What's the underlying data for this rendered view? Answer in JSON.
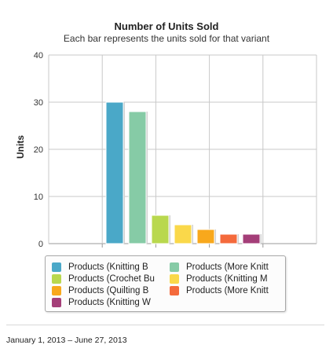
{
  "chart_data": {
    "type": "bar",
    "title": "Number of Units Sold",
    "subtitle": "Each bar represents the units sold for that variant",
    "ylabel": "Units",
    "xlabel": "",
    "ylim": [
      0,
      40
    ],
    "yticks": [
      "0",
      "10",
      "20",
      "30",
      "40"
    ],
    "grid": true,
    "legend_position": "bottom",
    "series": [
      {
        "name": "Products (Knitting B",
        "value": 30,
        "color": "#4aa8c8"
      },
      {
        "name": "Products (More Knitt",
        "value": 28,
        "color": "#86cba6"
      },
      {
        "name": "Products (Crochet Bu",
        "value": 6,
        "color": "#b9d84e"
      },
      {
        "name": "Products (Knitting M",
        "value": 4,
        "color": "#fad84a"
      },
      {
        "name": "Products (Quilting B",
        "value": 3,
        "color": "#f8a81c"
      },
      {
        "name": "Products (More Knitt",
        "value": 2,
        "color": "#f46a3c"
      },
      {
        "name": "Products (Knitting W",
        "value": 2,
        "color": "#a43e78"
      }
    ]
  },
  "footer": {
    "date_range": "January 1, 2013 – June 27, 2013"
  }
}
